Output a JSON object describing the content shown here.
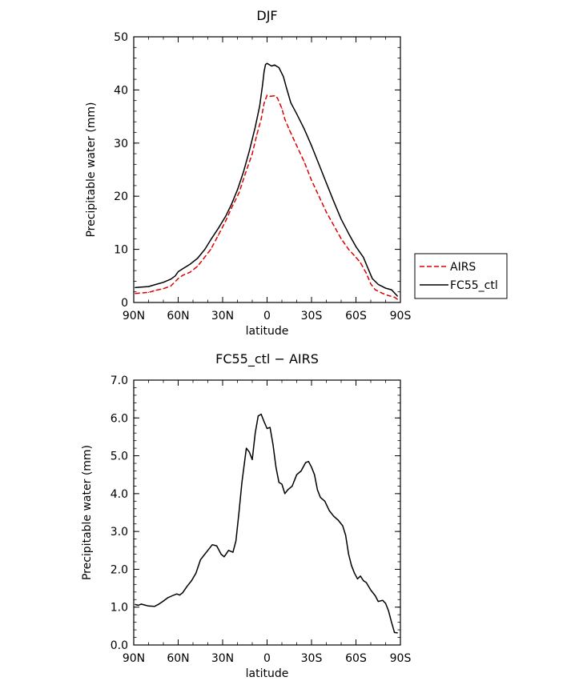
{
  "chart_data": [
    {
      "type": "line",
      "title": "DJF",
      "xlabel": "latitude",
      "ylabel": "Precipitable water (mm)",
      "xlim": [
        90,
        -90
      ],
      "ylim": [
        0,
        50
      ],
      "x_ticks": [
        90,
        60,
        30,
        0,
        -30,
        -60,
        -90
      ],
      "x_tick_labels": [
        "90N",
        "60N",
        "30N",
        "0",
        "30S",
        "60S",
        "90S"
      ],
      "y_ticks": [
        0,
        10,
        20,
        30,
        40,
        50
      ],
      "y_tick_labels": [
        "0",
        "10",
        "20",
        "30",
        "40",
        "50"
      ],
      "legend_position": "right-outside",
      "series": [
        {
          "name": "AIRS",
          "color": "#dd0000",
          "dash": "dashed",
          "points": [
            [
              89,
              1.7
            ],
            [
              80,
              1.9
            ],
            [
              75,
              2.3
            ],
            [
              70,
              2.6
            ],
            [
              65,
              3.1
            ],
            [
              60,
              4.5
            ],
            [
              57,
              5.1
            ],
            [
              52,
              5.7
            ],
            [
              47,
              6.8
            ],
            [
              43,
              8.2
            ],
            [
              38,
              10.0
            ],
            [
              33,
              12.6
            ],
            [
              28,
              15.3
            ],
            [
              24,
              17.8
            ],
            [
              19,
              20.6
            ],
            [
              15,
              24.0
            ],
            [
              10,
              28.0
            ],
            [
              7,
              31.5
            ],
            [
              4,
              34.5
            ],
            [
              2,
              37.5
            ],
            [
              0,
              39.0
            ],
            [
              -2,
              38.8
            ],
            [
              -5,
              38.9
            ],
            [
              -7,
              38.5
            ],
            [
              -10,
              36.5
            ],
            [
              -12,
              34.5
            ],
            [
              -15,
              32.5
            ],
            [
              -20,
              29.5
            ],
            [
              -25,
              26.5
            ],
            [
              -30,
              23.0
            ],
            [
              -35,
              20.0
            ],
            [
              -40,
              17.0
            ],
            [
              -45,
              14.5
            ],
            [
              -50,
              12.0
            ],
            [
              -55,
              10.0
            ],
            [
              -60,
              8.5
            ],
            [
              -63,
              7.5
            ],
            [
              -67,
              5.5
            ],
            [
              -70,
              3.5
            ],
            [
              -73,
              2.4
            ],
            [
              -78,
              1.7
            ],
            [
              -82,
              1.3
            ],
            [
              -86,
              1.0
            ],
            [
              -88,
              0.6
            ]
          ]
        },
        {
          "name": "FC55_ctl",
          "color": "#000000",
          "dash": "solid",
          "points": [
            [
              89,
              2.8
            ],
            [
              85,
              2.9
            ],
            [
              80,
              3.0
            ],
            [
              75,
              3.4
            ],
            [
              70,
              3.8
            ],
            [
              65,
              4.4
            ],
            [
              62,
              5.0
            ],
            [
              60,
              5.8
            ],
            [
              56,
              6.5
            ],
            [
              52,
              7.2
            ],
            [
              47,
              8.3
            ],
            [
              42,
              10.0
            ],
            [
              38,
              11.8
            ],
            [
              33,
              13.9
            ],
            [
              28,
              16.2
            ],
            [
              24,
              18.5
            ],
            [
              20,
              21.2
            ],
            [
              16,
              24.5
            ],
            [
              12,
              28.5
            ],
            [
              8,
              33.0
            ],
            [
              5,
              37.0
            ],
            [
              3,
              41.0
            ],
            [
              2,
              43.5
            ],
            [
              1,
              44.8
            ],
            [
              0,
              45.0
            ],
            [
              -3,
              44.5
            ],
            [
              -5,
              44.7
            ],
            [
              -8,
              44.2
            ],
            [
              -11,
              42.5
            ],
            [
              -13,
              40.5
            ],
            [
              -16,
              37.6
            ],
            [
              -20,
              35.5
            ],
            [
              -25,
              32.7
            ],
            [
              -30,
              29.5
            ],
            [
              -35,
              26.0
            ],
            [
              -40,
              22.5
            ],
            [
              -45,
              19.0
            ],
            [
              -50,
              15.7
            ],
            [
              -55,
              13.0
            ],
            [
              -60,
              10.5
            ],
            [
              -65,
              8.5
            ],
            [
              -68,
              6.5
            ],
            [
              -71,
              4.5
            ],
            [
              -75,
              3.4
            ],
            [
              -80,
              2.7
            ],
            [
              -84,
              2.4
            ],
            [
              -88,
              1.2
            ]
          ]
        }
      ]
    },
    {
      "type": "line",
      "title": "FC55_ctl − AIRS",
      "xlabel": "latitude",
      "ylabel": "Precipitable water (mm)",
      "xlim": [
        90,
        -90
      ],
      "ylim": [
        0,
        7
      ],
      "x_ticks": [
        90,
        60,
        30,
        0,
        -30,
        -60,
        -90
      ],
      "x_tick_labels": [
        "90N",
        "60N",
        "30N",
        "0",
        "30S",
        "60S",
        "90S"
      ],
      "y_ticks": [
        0,
        1,
        2,
        3,
        4,
        5,
        6,
        7
      ],
      "y_tick_labels": [
        "0.0",
        "1.0",
        "2.0",
        "3.0",
        "4.0",
        "5.0",
        "6.0",
        "7.0"
      ],
      "series": [
        {
          "color": "#000000",
          "dash": "solid",
          "points": [
            [
              89,
              1.07
            ],
            [
              87,
              1.05
            ],
            [
              85,
              1.08
            ],
            [
              82,
              1.05
            ],
            [
              80,
              1.03
            ],
            [
              76,
              1.02
            ],
            [
              73,
              1.08
            ],
            [
              70,
              1.16
            ],
            [
              67,
              1.25
            ],
            [
              64,
              1.3
            ],
            [
              61,
              1.35
            ],
            [
              59,
              1.32
            ],
            [
              57,
              1.38
            ],
            [
              54,
              1.55
            ],
            [
              51,
              1.7
            ],
            [
              48,
              1.9
            ],
            [
              45,
              2.25
            ],
            [
              42,
              2.4
            ],
            [
              40,
              2.5
            ],
            [
              37,
              2.65
            ],
            [
              34,
              2.62
            ],
            [
              31,
              2.4
            ],
            [
              29,
              2.33
            ],
            [
              26,
              2.5
            ],
            [
              23,
              2.45
            ],
            [
              21,
              2.75
            ],
            [
              19,
              3.5
            ],
            [
              17,
              4.3
            ],
            [
              14,
              5.2
            ],
            [
              12,
              5.1
            ],
            [
              10,
              4.9
            ],
            [
              8,
              5.6
            ],
            [
              6,
              6.05
            ],
            [
              4,
              6.1
            ],
            [
              2,
              5.9
            ],
            [
              0,
              5.72
            ],
            [
              -2,
              5.75
            ],
            [
              -4,
              5.3
            ],
            [
              -6,
              4.7
            ],
            [
              -8,
              4.3
            ],
            [
              -10,
              4.25
            ],
            [
              -12,
              4.0
            ],
            [
              -14,
              4.1
            ],
            [
              -17,
              4.2
            ],
            [
              -20,
              4.5
            ],
            [
              -23,
              4.6
            ],
            [
              -26,
              4.82
            ],
            [
              -28,
              4.85
            ],
            [
              -30,
              4.7
            ],
            [
              -32,
              4.5
            ],
            [
              -34,
              4.1
            ],
            [
              -36,
              3.9
            ],
            [
              -39,
              3.8
            ],
            [
              -42,
              3.55
            ],
            [
              -45,
              3.4
            ],
            [
              -48,
              3.3
            ],
            [
              -51,
              3.15
            ],
            [
              -53,
              2.9
            ],
            [
              -55,
              2.4
            ],
            [
              -57,
              2.1
            ],
            [
              -59,
              1.9
            ],
            [
              -61,
              1.75
            ],
            [
              -63,
              1.82
            ],
            [
              -65,
              1.7
            ],
            [
              -67,
              1.65
            ],
            [
              -70,
              1.45
            ],
            [
              -73,
              1.3
            ],
            [
              -75,
              1.15
            ],
            [
              -78,
              1.18
            ],
            [
              -80,
              1.1
            ],
            [
              -82,
              0.9
            ],
            [
              -84,
              0.6
            ],
            [
              -86,
              0.33
            ],
            [
              -88,
              0.32
            ]
          ]
        }
      ]
    }
  ]
}
